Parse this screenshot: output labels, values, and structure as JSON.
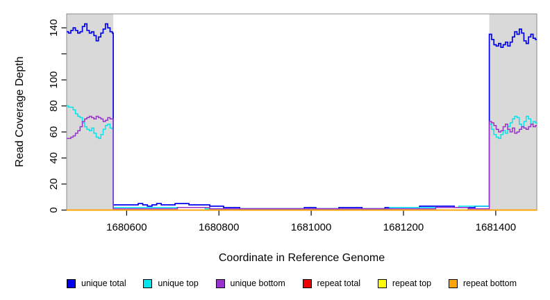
{
  "figure": {
    "background": "#ffffff",
    "panel_border_color": "#8a8a8a",
    "shade_color": "#d9d9d9",
    "axis_color": "#000000"
  },
  "chart_data": {
    "type": "line",
    "title": "",
    "xlabel": "Coordinate in Reference Genome",
    "ylabel": "Read Coverage Depth",
    "xlim": [
      1680470,
      1681489
    ],
    "ylim": [
      0,
      150.7
    ],
    "grid": false,
    "legend_position": "bottom",
    "x_ticks": [
      {
        "value": 1680600,
        "label": "1680600"
      },
      {
        "value": 1680800,
        "label": "1680800"
      },
      {
        "value": 1681000,
        "label": "1681000"
      },
      {
        "value": 1681200,
        "label": "1681200"
      },
      {
        "value": 1681400,
        "label": "1681400"
      }
    ],
    "y_ticks": [
      {
        "value": 0,
        "label": "0"
      },
      {
        "value": 20,
        "label": "20"
      },
      {
        "value": 40,
        "label": "40"
      },
      {
        "value": 60,
        "label": "60"
      },
      {
        "value": 80,
        "label": "80"
      },
      {
        "value": 100,
        "label": "100"
      },
      {
        "value": 120,
        "label": ""
      },
      {
        "value": 140,
        "label": "140"
      }
    ],
    "shaded_regions": [
      {
        "x0": 1680470,
        "x1": 1680571
      },
      {
        "x0": 1681386,
        "x1": 1681489
      }
    ],
    "legend": [
      {
        "label": "unique total",
        "color": "#0000EE"
      },
      {
        "label": "unique top",
        "color": "#00E5EE"
      },
      {
        "label": "unique bottom",
        "color": "#9932CC"
      },
      {
        "label": "repeat total",
        "color": "#EE0000"
      },
      {
        "label": "repeat top",
        "color": "#FFFF00"
      },
      {
        "label": "repeat bottom",
        "color": "#FFA500"
      }
    ],
    "series": [
      {
        "name": "unique total",
        "color": "#0000EE",
        "step": true,
        "width": 1.7,
        "points": [
          [
            1680470,
            137
          ],
          [
            1680474,
            136
          ],
          [
            1680479,
            138
          ],
          [
            1680484,
            140
          ],
          [
            1680489,
            138
          ],
          [
            1680494,
            136
          ],
          [
            1680499,
            137
          ],
          [
            1680504,
            141
          ],
          [
            1680509,
            143
          ],
          [
            1680514,
            138
          ],
          [
            1680519,
            136
          ],
          [
            1680524,
            137
          ],
          [
            1680529,
            134
          ],
          [
            1680534,
            130
          ],
          [
            1680539,
            133
          ],
          [
            1680544,
            136
          ],
          [
            1680549,
            139
          ],
          [
            1680554,
            143
          ],
          [
            1680559,
            140
          ],
          [
            1680564,
            137
          ],
          [
            1680569,
            136
          ],
          [
            1680571,
            4
          ],
          [
            1680590,
            4
          ],
          [
            1680610,
            4
          ],
          [
            1680625,
            5
          ],
          [
            1680635,
            4
          ],
          [
            1680645,
            3
          ],
          [
            1680655,
            4
          ],
          [
            1680665,
            5
          ],
          [
            1680675,
            4
          ],
          [
            1680690,
            4
          ],
          [
            1680705,
            5
          ],
          [
            1680720,
            5
          ],
          [
            1680735,
            4
          ],
          [
            1680750,
            4
          ],
          [
            1680765,
            4
          ],
          [
            1680780,
            3
          ],
          [
            1680795,
            3
          ],
          [
            1680810,
            2
          ],
          [
            1680825,
            2
          ],
          [
            1680845,
            1
          ],
          [
            1680865,
            1
          ],
          [
            1680885,
            1
          ],
          [
            1680910,
            1
          ],
          [
            1680935,
            1
          ],
          [
            1680960,
            1
          ],
          [
            1680985,
            2
          ],
          [
            1681010,
            1
          ],
          [
            1681035,
            1
          ],
          [
            1681060,
            2
          ],
          [
            1681085,
            2
          ],
          [
            1681110,
            1
          ],
          [
            1681135,
            1
          ],
          [
            1681160,
            2
          ],
          [
            1681185,
            2
          ],
          [
            1681210,
            2
          ],
          [
            1681235,
            3
          ],
          [
            1681260,
            3
          ],
          [
            1681285,
            3
          ],
          [
            1681310,
            2
          ],
          [
            1681335,
            2
          ],
          [
            1681355,
            3
          ],
          [
            1681380,
            3
          ],
          [
            1681386,
            135
          ],
          [
            1681391,
            131
          ],
          [
            1681396,
            127
          ],
          [
            1681401,
            126
          ],
          [
            1681406,
            128
          ],
          [
            1681411,
            125
          ],
          [
            1681416,
            127
          ],
          [
            1681421,
            129
          ],
          [
            1681426,
            126
          ],
          [
            1681431,
            129
          ],
          [
            1681436,
            133
          ],
          [
            1681441,
            137
          ],
          [
            1681446,
            135
          ],
          [
            1681451,
            139
          ],
          [
            1681456,
            136
          ],
          [
            1681461,
            130
          ],
          [
            1681466,
            128
          ],
          [
            1681471,
            133
          ],
          [
            1681476,
            135
          ],
          [
            1681481,
            132
          ],
          [
            1681486,
            131
          ],
          [
            1681489,
            131
          ]
        ]
      },
      {
        "name": "unique top",
        "color": "#00E5EE",
        "step": true,
        "width": 1.5,
        "points": [
          [
            1680470,
            80
          ],
          [
            1680474,
            79
          ],
          [
            1680479,
            79
          ],
          [
            1680484,
            77
          ],
          [
            1680489,
            74
          ],
          [
            1680494,
            72
          ],
          [
            1680499,
            71
          ],
          [
            1680504,
            67
          ],
          [
            1680509,
            64
          ],
          [
            1680514,
            62
          ],
          [
            1680519,
            61
          ],
          [
            1680524,
            63
          ],
          [
            1680529,
            59
          ],
          [
            1680534,
            56
          ],
          [
            1680539,
            55
          ],
          [
            1680544,
            58
          ],
          [
            1680549,
            62
          ],
          [
            1680554,
            65
          ],
          [
            1680559,
            66
          ],
          [
            1680564,
            63
          ],
          [
            1680569,
            62
          ],
          [
            1680571,
            2
          ],
          [
            1680620,
            2
          ],
          [
            1680670,
            2
          ],
          [
            1680720,
            2
          ],
          [
            1680770,
            1
          ],
          [
            1680820,
            1
          ],
          [
            1680870,
            1
          ],
          [
            1680920,
            1
          ],
          [
            1680970,
            1
          ],
          [
            1681020,
            1
          ],
          [
            1681070,
            1
          ],
          [
            1681120,
            1
          ],
          [
            1681170,
            2
          ],
          [
            1681220,
            2
          ],
          [
            1681270,
            2
          ],
          [
            1681320,
            3
          ],
          [
            1681370,
            3
          ],
          [
            1681386,
            66
          ],
          [
            1681391,
            62
          ],
          [
            1681396,
            58
          ],
          [
            1681401,
            56
          ],
          [
            1681406,
            55
          ],
          [
            1681411,
            58
          ],
          [
            1681416,
            61
          ],
          [
            1681421,
            59
          ],
          [
            1681426,
            64
          ],
          [
            1681431,
            67
          ],
          [
            1681436,
            70
          ],
          [
            1681441,
            72
          ],
          [
            1681446,
            71
          ],
          [
            1681451,
            66
          ],
          [
            1681456,
            64
          ],
          [
            1681461,
            68
          ],
          [
            1681466,
            72
          ],
          [
            1681471,
            70
          ],
          [
            1681476,
            66
          ],
          [
            1681481,
            68
          ],
          [
            1681486,
            67
          ],
          [
            1681489,
            67
          ]
        ]
      },
      {
        "name": "unique bottom",
        "color": "#9932CC",
        "step": true,
        "width": 1.5,
        "points": [
          [
            1680470,
            55
          ],
          [
            1680474,
            55
          ],
          [
            1680479,
            56
          ],
          [
            1680484,
            57
          ],
          [
            1680489,
            59
          ],
          [
            1680494,
            61
          ],
          [
            1680499,
            64
          ],
          [
            1680504,
            68
          ],
          [
            1680509,
            70
          ],
          [
            1680514,
            71
          ],
          [
            1680519,
            72
          ],
          [
            1680524,
            71
          ],
          [
            1680529,
            70
          ],
          [
            1680534,
            72
          ],
          [
            1680539,
            71
          ],
          [
            1680544,
            70
          ],
          [
            1680549,
            68
          ],
          [
            1680554,
            69
          ],
          [
            1680559,
            71
          ],
          [
            1680564,
            70
          ],
          [
            1680569,
            70
          ],
          [
            1680571,
            1
          ],
          [
            1680640,
            1
          ],
          [
            1680710,
            2
          ],
          [
            1680780,
            1
          ],
          [
            1680850,
            1
          ],
          [
            1680920,
            1
          ],
          [
            1680990,
            1
          ],
          [
            1681060,
            1
          ],
          [
            1681130,
            1
          ],
          [
            1681200,
            1
          ],
          [
            1681270,
            2
          ],
          [
            1681340,
            1
          ],
          [
            1681386,
            68
          ],
          [
            1681391,
            67
          ],
          [
            1681396,
            65
          ],
          [
            1681401,
            62
          ],
          [
            1681406,
            60
          ],
          [
            1681411,
            61
          ],
          [
            1681416,
            64
          ],
          [
            1681421,
            66
          ],
          [
            1681426,
            62
          ],
          [
            1681431,
            60
          ],
          [
            1681436,
            63
          ],
          [
            1681441,
            59
          ],
          [
            1681446,
            60
          ],
          [
            1681451,
            62
          ],
          [
            1681456,
            64
          ],
          [
            1681461,
            63
          ],
          [
            1681466,
            62
          ],
          [
            1681471,
            64
          ],
          [
            1681476,
            66
          ],
          [
            1681481,
            64
          ],
          [
            1681486,
            65
          ],
          [
            1681489,
            65
          ]
        ]
      },
      {
        "name": "repeat total",
        "color": "#EE0000",
        "step": true,
        "width": 1.5,
        "points": [
          [
            1680470,
            0
          ],
          [
            1681489,
            0
          ]
        ]
      },
      {
        "name": "repeat top",
        "color": "#FFFF00",
        "step": true,
        "width": 1.5,
        "points": [
          [
            1680470,
            0
          ],
          [
            1681489,
            0
          ]
        ]
      },
      {
        "name": "repeat bottom",
        "color": "#FFA500",
        "step": true,
        "width": 1.7,
        "points": [
          [
            1680470,
            0
          ],
          [
            1681489,
            0
          ]
        ]
      }
    ]
  }
}
